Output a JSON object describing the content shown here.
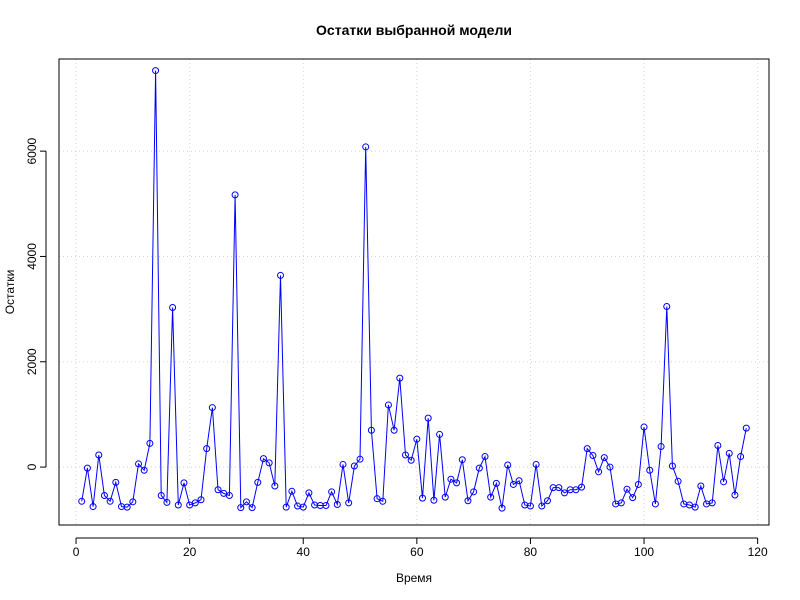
{
  "chart_data": {
    "type": "line",
    "title": "Остатки выбранной модели",
    "xlabel": "Время",
    "ylabel": "Остатки",
    "xlim": [
      -3,
      122
    ],
    "ylim": [
      -1100,
      7750
    ],
    "xticks": [
      0,
      20,
      40,
      60,
      80,
      100,
      120
    ],
    "yticks": [
      0,
      2000,
      4000,
      6000
    ],
    "grid": true,
    "markers": "open-circle",
    "line_color": "#0000ff",
    "grid_color": "#d3d3d3",
    "series": [
      {
        "name": "",
        "x": [
          1,
          2,
          3,
          4,
          5,
          6,
          7,
          8,
          9,
          10,
          11,
          12,
          13,
          14,
          15,
          16,
          17,
          18,
          19,
          20,
          21,
          22,
          23,
          24,
          25,
          26,
          27,
          28,
          29,
          30,
          31,
          32,
          33,
          34,
          35,
          36,
          37,
          38,
          39,
          40,
          41,
          42,
          43,
          44,
          45,
          46,
          47,
          48,
          49,
          50,
          51,
          52,
          53,
          54,
          55,
          56,
          57,
          58,
          59,
          60,
          61,
          62,
          63,
          64,
          65,
          66,
          67,
          68,
          69,
          70,
          71,
          72,
          73,
          74,
          75,
          76,
          77,
          78,
          79,
          80,
          81,
          82,
          83,
          84,
          85,
          86,
          87,
          88,
          89,
          90,
          91,
          92,
          93,
          94,
          95,
          96,
          97,
          98,
          99,
          100,
          101,
          102,
          103,
          104,
          105,
          106,
          107,
          108,
          109,
          110,
          111,
          112,
          113,
          114,
          115,
          116,
          117,
          118
        ],
        "y": [
          -650,
          -20,
          -750,
          230,
          -540,
          -650,
          -290,
          -750,
          -760,
          -660,
          60,
          -60,
          450,
          7530,
          -540,
          -670,
          3030,
          -720,
          -300,
          -720,
          -680,
          -620,
          350,
          1130,
          -430,
          -500,
          -540,
          5170,
          -770,
          -660,
          -770,
          -290,
          160,
          80,
          -360,
          3640,
          -760,
          -460,
          -740,
          -760,
          -490,
          -720,
          -730,
          -730,
          -470,
          -710,
          50,
          -680,
          20,
          150,
          6080,
          700,
          -600,
          -650,
          1180,
          700,
          1690,
          230,
          130,
          530,
          -590,
          930,
          -630,
          620,
          -570,
          -230,
          -300,
          140,
          -640,
          -470,
          -20,
          200,
          -570,
          -310,
          -780,
          40,
          -330,
          -260,
          -720,
          -740,
          50,
          -740,
          -640,
          -390,
          -390,
          -490,
          -430,
          -430,
          -380,
          350,
          220,
          -90,
          180,
          0,
          -700,
          -680,
          -420,
          -580,
          -330,
          760,
          -60,
          -700,
          390,
          3050,
          20,
          -270,
          -700,
          -720,
          -760,
          -360,
          -700,
          -680,
          410,
          -280,
          260,
          -530,
          200,
          740
        ]
      }
    ]
  }
}
